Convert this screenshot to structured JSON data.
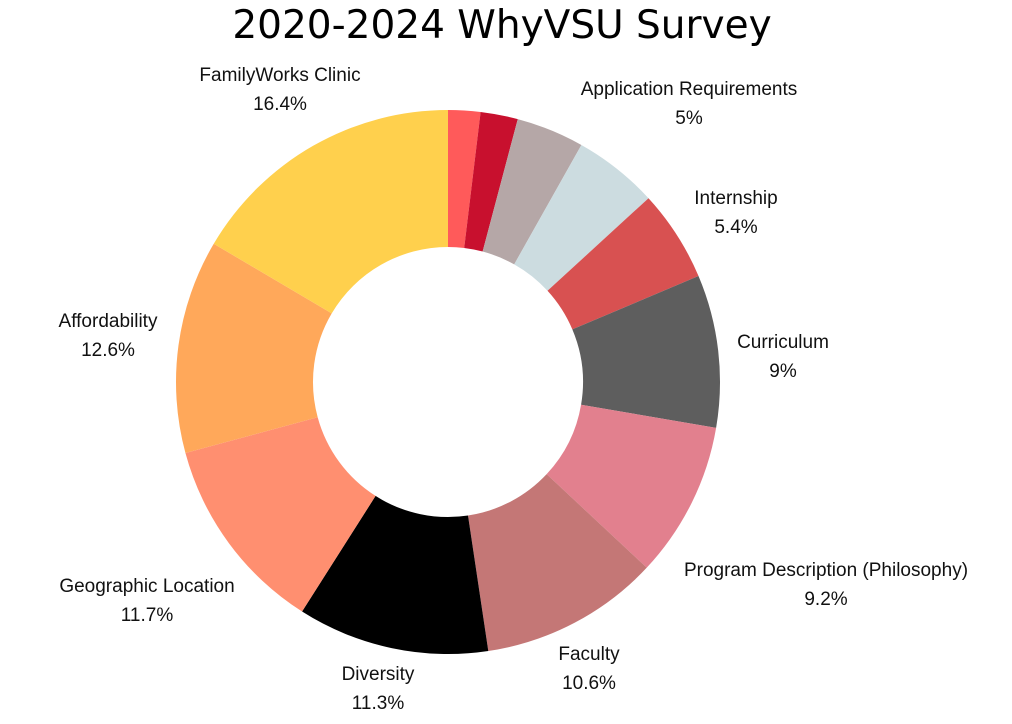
{
  "chart_data": {
    "type": "pie",
    "subtype": "donut",
    "title": "2020-2024 WhyVSU Survey",
    "legend": "none",
    "slices": [
      {
        "label": "",
        "value_label": "",
        "value": 1.9,
        "color": "#FF5A5A"
      },
      {
        "label": "",
        "value_label": "",
        "value": 2.2,
        "color": "#C8102E"
      },
      {
        "label": "",
        "value_label": "",
        "value": 4.0,
        "color": "#B5A7A7"
      },
      {
        "label": "Application Requirements",
        "value_label": "5%",
        "value": 5.0,
        "color": "#CCDCE0"
      },
      {
        "label": "Internship",
        "value_label": "5.4%",
        "value": 5.4,
        "color": "#D85151"
      },
      {
        "label": "Curriculum",
        "value_label": "9%",
        "value": 9.0,
        "color": "#5E5E5E"
      },
      {
        "label": "Program Description (Philosophy)",
        "value_label": "9.2%",
        "value": 9.2,
        "color": "#E2808E"
      },
      {
        "label": "Faculty",
        "value_label": "10.6%",
        "value": 10.6,
        "color": "#C47776"
      },
      {
        "label": "Diversity",
        "value_label": "11.3%",
        "value": 11.3,
        "color": "#000000"
      },
      {
        "label": "Geographic Location",
        "value_label": "11.7%",
        "value": 11.7,
        "color": "#FF8F70"
      },
      {
        "label": "Affordability",
        "value_label": "12.6%",
        "value": 12.6,
        "color": "#FFA85A"
      },
      {
        "label": "FamilyWorks Clinic",
        "value_label": "16.4%",
        "value": 16.4,
        "color": "#FFD04D"
      }
    ]
  }
}
